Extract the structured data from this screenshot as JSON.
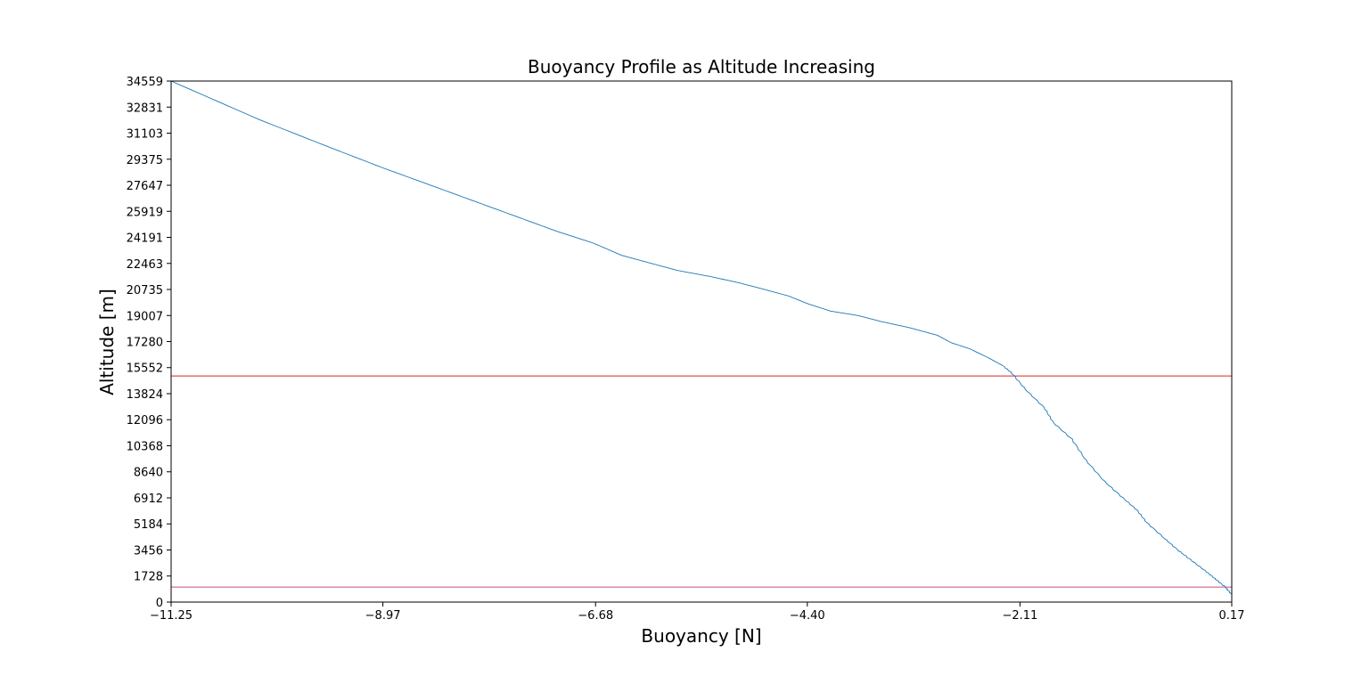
{
  "chart_data": {
    "type": "line",
    "title": "Buoyancy Profile as Altitude Increasing",
    "xlabel": "Buoyancy [N]",
    "ylabel": "Altitude [m]",
    "xlim": [
      -11.25,
      0.17
    ],
    "ylim": [
      0,
      34559
    ],
    "xticks": [
      "−11.25",
      "−8.97",
      "−6.68",
      "−4.40",
      "−2.11",
      "0.17"
    ],
    "xtick_values": [
      -11.25,
      -8.97,
      -6.68,
      -4.4,
      -2.11,
      0.17
    ],
    "yticks": [
      "0",
      "1728",
      "3456",
      "5184",
      "6912",
      "8640",
      "10368",
      "12096",
      "13824",
      "15552",
      "17280",
      "19007",
      "20735",
      "22463",
      "24191",
      "25919",
      "27647",
      "29375",
      "31103",
      "32831",
      "34559"
    ],
    "ytick_values": [
      0,
      1728,
      3456,
      5184,
      6912,
      8640,
      10368,
      12096,
      13824,
      15552,
      17280,
      19007,
      20735,
      22463,
      24191,
      25919,
      27647,
      29375,
      31103,
      32831,
      34559
    ],
    "grid": false,
    "series": [
      {
        "color": "#1f77b4",
        "x": [
          0.17,
          0.1,
          0.0,
          -0.1,
          -0.25,
          -0.4,
          -0.55,
          -0.75,
          -0.85,
          -1.0,
          -1.2,
          -1.4,
          -1.55,
          -1.75,
          -1.85,
          -2.05,
          -2.2,
          -2.3,
          -2.45,
          -2.65,
          -2.85,
          -3.0,
          -3.3,
          -3.6,
          -3.85,
          -4.15,
          -4.4,
          -4.6,
          -4.9,
          -5.15,
          -5.45,
          -5.8,
          -6.1,
          -6.4,
          -6.7,
          -7.1,
          -7.5,
          -7.9,
          -8.3,
          -8.97,
          -9.6,
          -10.3,
          -11.25
        ],
        "y": [
          500,
          1000,
          1500,
          2000,
          2700,
          3400,
          4200,
          5300,
          6100,
          6900,
          8000,
          9400,
          10800,
          11900,
          12900,
          14100,
          15200,
          15700,
          16200,
          16800,
          17200,
          17700,
          18200,
          18600,
          19000,
          19300,
          19800,
          20300,
          20800,
          21200,
          21600,
          22000,
          22500,
          23000,
          23800,
          24600,
          25500,
          26400,
          27300,
          28800,
          30300,
          32000,
          34559
        ]
      }
    ],
    "hlines": [
      {
        "y": 15000,
        "color": "#d62728"
      },
      {
        "y": 1000,
        "color": "#c44e8a"
      }
    ]
  }
}
